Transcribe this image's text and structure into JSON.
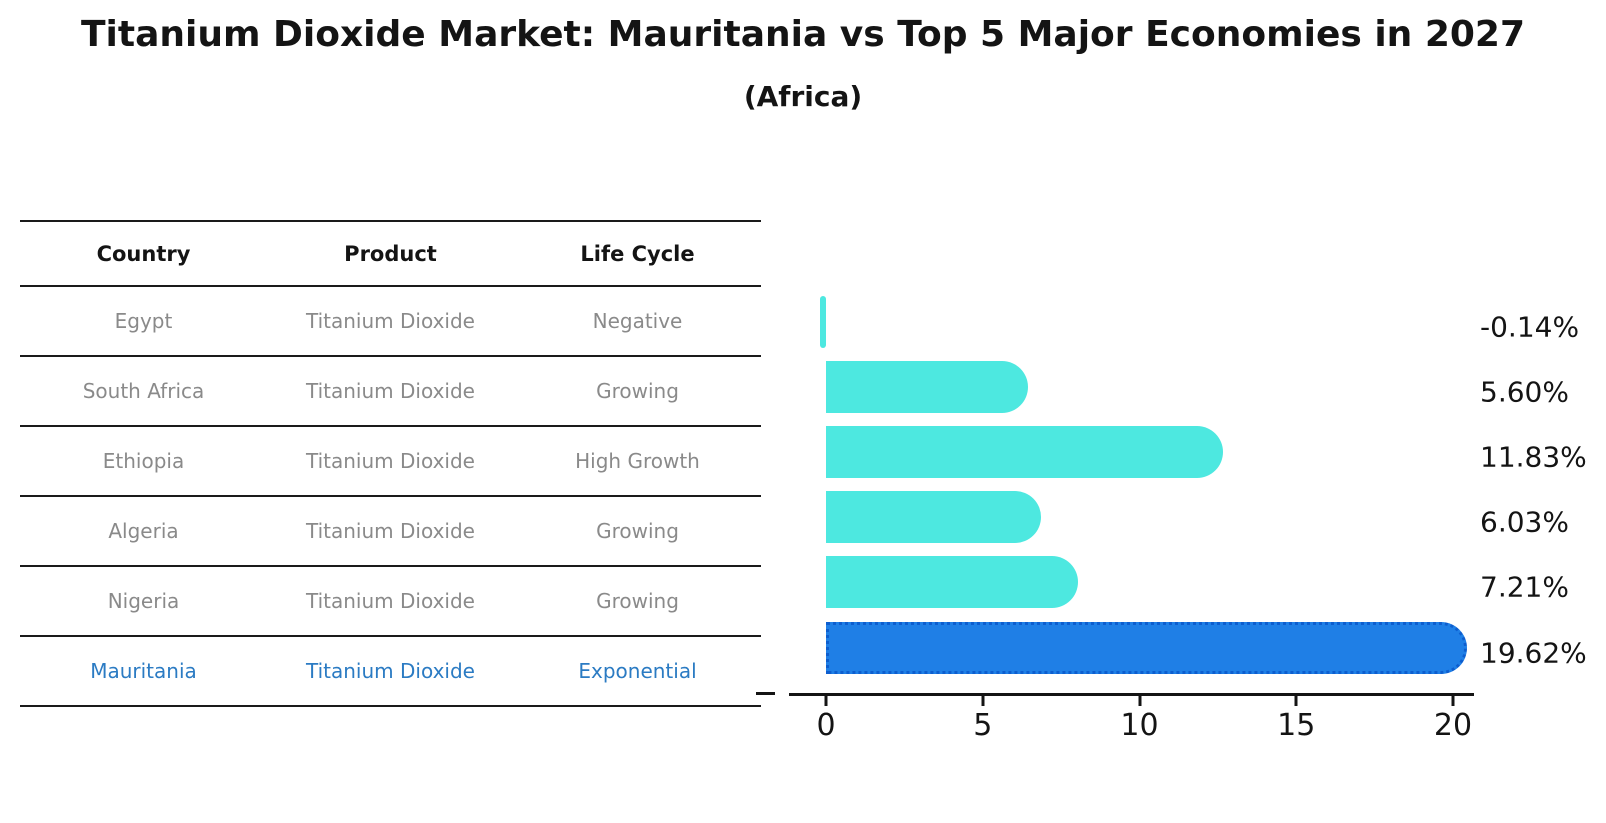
{
  "title": "Titanium Dioxide Market: Mauritania vs Top 5 Major Economies in 2027",
  "subtitle": "(Africa)",
  "table": {
    "headers": [
      "Country",
      "Product",
      "Life Cycle"
    ],
    "rows": [
      {
        "country": "Egypt",
        "product": "Titanium Dioxide",
        "life_cycle": "Negative"
      },
      {
        "country": "South Africa",
        "product": "Titanium Dioxide",
        "life_cycle": "Growing"
      },
      {
        "country": "Ethiopia",
        "product": "Titanium Dioxide",
        "life_cycle": "High Growth"
      },
      {
        "country": "Algeria",
        "product": "Titanium Dioxide",
        "life_cycle": "Growing"
      },
      {
        "country": "Nigeria",
        "product": "Titanium Dioxide",
        "life_cycle": "Growing"
      },
      {
        "country": "Mauritania",
        "product": "Titanium Dioxide",
        "life_cycle": "Exponential"
      }
    ],
    "highlight_row": "Mauritania"
  },
  "chart_data": {
    "type": "bar",
    "orientation": "horizontal",
    "title": "Titanium Dioxide Market: Mauritania vs Top 5 Major Economies in 2027 (Africa)",
    "categories": [
      "Egypt",
      "South Africa",
      "Ethiopia",
      "Algeria",
      "Nigeria",
      "Mauritania"
    ],
    "values": [
      -0.14,
      5.6,
      11.83,
      6.03,
      7.21,
      19.62
    ],
    "value_labels": [
      "-0.14%",
      "5.60%",
      "11.83%",
      "6.03%",
      "7.21%",
      "19.62%"
    ],
    "xticks": [
      "0",
      "5",
      "10",
      "15",
      "20"
    ],
    "xtick_values": [
      0,
      5,
      10,
      15,
      20
    ],
    "xlim": [
      0,
      20
    ],
    "grid": false,
    "legend": "none",
    "bar_color": "#4DE8E0",
    "highlight_color": "#1F7FE6",
    "highlight_border_color": "#0D5ECF",
    "highlight_index": 5,
    "highlight_category": "Mauritania",
    "text_colors": {
      "table_header": "#141414",
      "table_cell": "#8A8A8A",
      "highlight_text": "#2B7BC3"
    }
  }
}
